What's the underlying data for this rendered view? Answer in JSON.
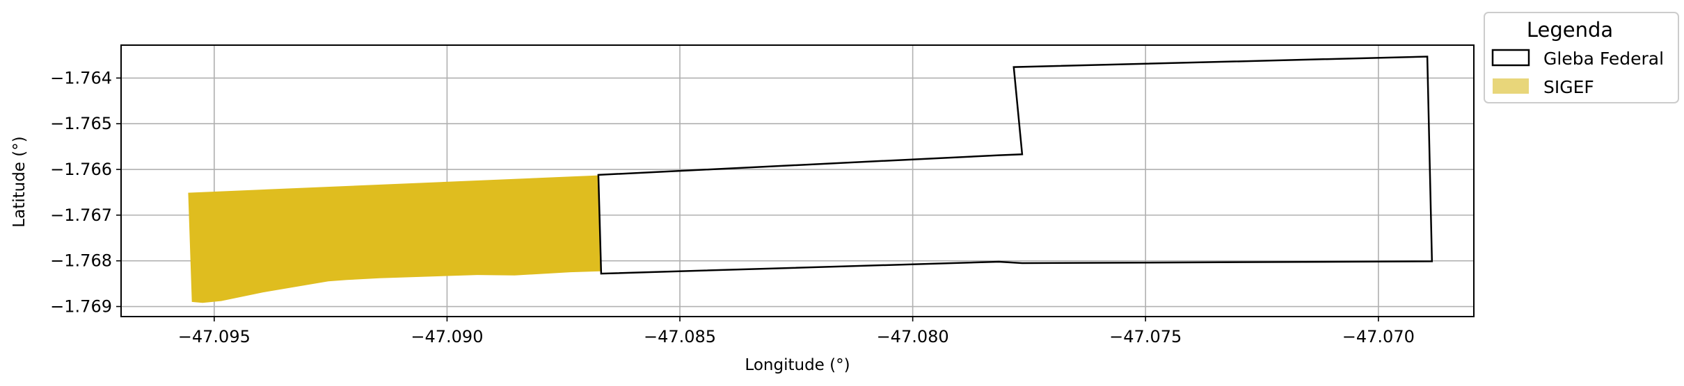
{
  "chart_data": {
    "type": "map",
    "xlabel": "Longitude (°)",
    "ylabel": "Latitude (°)",
    "xlim": [
      -47.097,
      -47.06795
    ],
    "ylim": [
      -1.76922,
      -1.76328
    ],
    "x_ticks": [
      -47.095,
      -47.09,
      -47.085,
      -47.08,
      -47.075,
      -47.07
    ],
    "x_tick_labels": [
      "−47.095",
      "−47.090",
      "−47.085",
      "−47.080",
      "−47.075",
      "−47.070"
    ],
    "y_ticks": [
      -1.764,
      -1.765,
      -1.766,
      -1.767,
      -1.768,
      -1.769
    ],
    "y_tick_labels": [
      "−1.764",
      "−1.765",
      "−1.766",
      "−1.767",
      "−1.768",
      "−1.769"
    ],
    "grid": true,
    "legend": {
      "title": "Legenda",
      "placement": "outside-top-right",
      "entries": [
        {
          "label": "Gleba Federal",
          "style": "outline",
          "color": "#000000"
        },
        {
          "label": "SIGEF",
          "style": "fill",
          "color": "#E8D67A"
        }
      ]
    },
    "series": [
      {
        "name": "SIGEF",
        "kind": "polygon",
        "fill": "#DFBD1F",
        "stroke": "none",
        "coords": [
          [
            -47.09556,
            -1.76651
          ],
          [
            -47.08675,
            -1.76613
          ],
          [
            -47.08669,
            -1.76823
          ],
          [
            -47.08735,
            -1.76825
          ],
          [
            -47.08855,
            -1.76832
          ],
          [
            -47.08935,
            -1.76831
          ],
          [
            -47.09145,
            -1.76838
          ],
          [
            -47.09215,
            -1.76842
          ],
          [
            -47.09255,
            -1.76845
          ],
          [
            -47.09395,
            -1.76869
          ],
          [
            -47.09485,
            -1.76888
          ],
          [
            -47.09525,
            -1.76892
          ],
          [
            -47.09548,
            -1.7689
          ],
          [
            -47.09556,
            -1.76651
          ]
        ]
      },
      {
        "name": "Gleba Federal",
        "kind": "polygon",
        "fill": "none",
        "stroke": "#000000",
        "coords": [
          [
            -47.08675,
            -1.76612
          ],
          [
            -47.07815,
            -1.76569
          ],
          [
            -47.07765,
            -1.76567
          ],
          [
            -47.07783,
            -1.76376
          ],
          [
            -47.06895,
            -1.76353
          ],
          [
            -47.06885,
            -1.76801
          ],
          [
            -47.07765,
            -1.76805
          ],
          [
            -47.07815,
            -1.76802
          ],
          [
            -47.08669,
            -1.76828
          ],
          [
            -47.08675,
            -1.76612
          ]
        ]
      }
    ]
  }
}
